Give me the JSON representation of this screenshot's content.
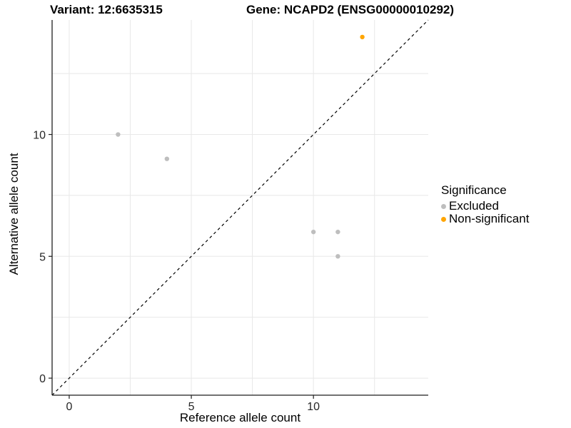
{
  "titles": {
    "variant": "Variant: 12:6635315",
    "gene": "Gene: NCAPD2 (ENSG00000010292)"
  },
  "chart_data": {
    "type": "scatter",
    "xlabel": "Reference allele count",
    "ylabel": "Alternative allele count",
    "xlim": [
      -0.7,
      14.7
    ],
    "ylim": [
      -0.7,
      14.7
    ],
    "x_ticks": [
      0,
      5,
      10
    ],
    "y_ticks": [
      0,
      5,
      10
    ],
    "x_gridlines": [
      0,
      2.5,
      5,
      7.5,
      10,
      12.5
    ],
    "y_gridlines": [
      0,
      2.5,
      5,
      7.5,
      10,
      12.5
    ],
    "grid": true,
    "identity_line": {
      "type": "dashed",
      "equation": "y = x",
      "color": "#000000"
    },
    "series": [
      {
        "name": "Excluded",
        "color": "#BEBEBE",
        "points": [
          [
            2,
            10
          ],
          [
            4,
            9
          ],
          [
            10,
            6
          ],
          [
            11,
            6
          ],
          [
            11,
            5
          ]
        ]
      },
      {
        "name": "Non-significant",
        "color": "#FFA500",
        "points": [
          [
            12,
            14
          ]
        ]
      }
    ],
    "legend": {
      "title": "Significance",
      "position": "right"
    },
    "colors": {
      "gridline": "#E8E8E8",
      "axis_line": "#1F1F1F",
      "tick_label": "#262626"
    }
  }
}
